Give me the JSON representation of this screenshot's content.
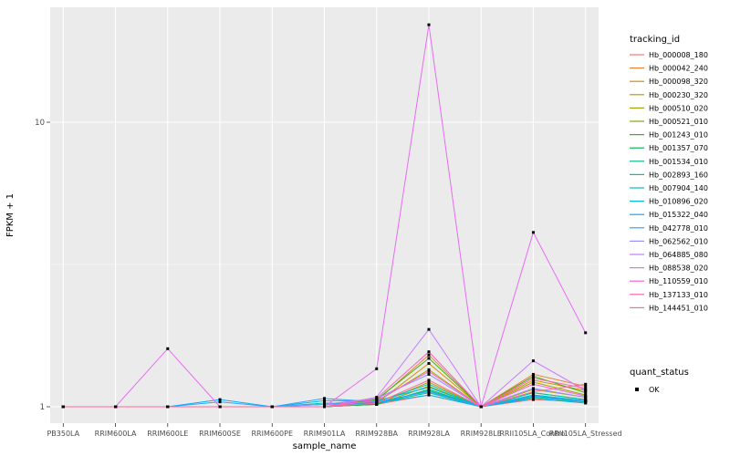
{
  "figure": {
    "panel_background": "#EBEBEB",
    "grid_color": "#FFFFFF",
    "tick_color": "#333333",
    "tick_label_color": "#4D4D4D",
    "axis_title_color": "#000000",
    "point_color": "#000000"
  },
  "chart_data": {
    "type": "line",
    "title": "",
    "xlabel": "sample_name",
    "ylabel": "FPKM + 1",
    "y_scale": "log10",
    "y_ticks": [
      1,
      10
    ],
    "y_minor_ticks": [
      3.162
    ],
    "ylim": [
      0.88,
      25
    ],
    "grid": true,
    "legend_position": "right",
    "categories": [
      "PB350LA",
      "RRIM600LA",
      "RRIM600LE",
      "RRIM600SE",
      "RRIM600PE",
      "RRIM901LA",
      "RRIM928BA",
      "RRIM928LA",
      "RRIM928LE",
      "RRII105LA_Control",
      "RRII105LA_Stressed"
    ],
    "series": [
      {
        "name": "Hb_000008_180",
        "color": "#F8766D",
        "values": [
          1,
          1,
          1,
          1,
          1,
          1,
          1.02,
          1.1,
          1,
          1.06,
          1.04
        ]
      },
      {
        "name": "Hb_000042_240",
        "color": "#EB8335",
        "values": [
          1,
          1,
          1,
          1,
          1,
          1,
          1.05,
          1.52,
          1,
          1.3,
          1.18
        ]
      },
      {
        "name": "Hb_000098_320",
        "color": "#D89000",
        "values": [
          1,
          1,
          1,
          1,
          1,
          1,
          1.03,
          1.42,
          1,
          1.24,
          1.14
        ]
      },
      {
        "name": "Hb_000230_320",
        "color": "#BF9B00",
        "values": [
          1,
          1,
          1,
          1,
          1,
          1,
          1.02,
          1.22,
          1,
          1.15,
          1.08
        ]
      },
      {
        "name": "Hb_000510_020",
        "color": "#A3A500",
        "values": [
          1,
          1,
          1,
          1,
          1,
          1,
          1.04,
          1.35,
          1,
          1.22,
          1.1
        ]
      },
      {
        "name": "Hb_000521_010",
        "color": "#7CAE00",
        "values": [
          1,
          1,
          1,
          1,
          1,
          1,
          1.02,
          1.18,
          1,
          1.12,
          1.06
        ]
      },
      {
        "name": "Hb_001243_010",
        "color": "#39B600",
        "values": [
          1,
          1,
          1,
          1,
          1,
          1,
          1.06,
          1.48,
          1,
          1.28,
          1.12
        ]
      },
      {
        "name": "Hb_001357_070",
        "color": "#00BB4E",
        "values": [
          1,
          1,
          1,
          1,
          1,
          1,
          1.02,
          1.15,
          1,
          1.1,
          1.05
        ]
      },
      {
        "name": "Hb_001534_010",
        "color": "#00C087",
        "values": [
          1,
          1,
          1,
          1,
          1,
          1,
          1.03,
          1.12,
          1,
          1.08,
          1.04
        ]
      },
      {
        "name": "Hb_002893_160",
        "color": "#00C1AB",
        "values": [
          1,
          1,
          1,
          1,
          1,
          1.02,
          1.04,
          1.2,
          1,
          1.12,
          1.06
        ]
      },
      {
        "name": "Hb_007904_140",
        "color": "#00BFC4",
        "values": [
          1,
          1,
          1,
          1,
          1,
          1.03,
          1.03,
          1.14,
          1,
          1.09,
          1.04
        ]
      },
      {
        "name": "Hb_010896_020",
        "color": "#00BAE0",
        "values": [
          1,
          1,
          1,
          1,
          1,
          1.05,
          1.05,
          1.17,
          1,
          1.1,
          1.05
        ]
      },
      {
        "name": "Hb_015322_040",
        "color": "#00B0F6",
        "values": [
          1,
          1,
          1,
          1.06,
          1,
          1.02,
          1.03,
          1.1,
          1,
          1.07,
          1.03
        ]
      },
      {
        "name": "Hb_042778_010",
        "color": "#35A2FF",
        "values": [
          1,
          1,
          1,
          1.04,
          1,
          1.07,
          1.04,
          1.13,
          1,
          1.09,
          1.05
        ]
      },
      {
        "name": "Hb_062562_010",
        "color": "#9590FF",
        "values": [
          1,
          1,
          1,
          1,
          1,
          1.02,
          1.07,
          1.3,
          1,
          1.16,
          1.08
        ]
      },
      {
        "name": "Hb_064885_080",
        "color": "#C77CFF",
        "values": [
          1,
          1,
          1,
          1,
          1,
          1,
          1.08,
          1.87,
          1,
          1.45,
          1.14
        ]
      },
      {
        "name": "Hb_088538_020",
        "color": "#E76BF3",
        "values": [
          1,
          1,
          1.6,
          1,
          1,
          1,
          1.36,
          22,
          1,
          4.1,
          1.82
        ]
      },
      {
        "name": "Hb_110559_010",
        "color": "#FA62DB",
        "values": [
          1,
          1,
          1,
          1,
          1,
          1,
          1.05,
          1.33,
          1,
          1.2,
          1.09
        ]
      },
      {
        "name": "Hb_137133_010",
        "color": "#FF62BC",
        "values": [
          1,
          1,
          1,
          1,
          1,
          1,
          1.07,
          1.56,
          1,
          1.26,
          1.16
        ]
      },
      {
        "name": "Hb_144451_010",
        "color": "#FF6A98",
        "values": [
          1,
          1,
          1,
          1,
          1,
          1,
          1.03,
          1.24,
          1,
          1.13,
          1.2
        ]
      }
    ],
    "legend": {
      "color_title": "tracking_id",
      "shape_title": "quant_status",
      "shape_items": [
        {
          "label": "OK",
          "marker": "black-square"
        }
      ]
    }
  }
}
